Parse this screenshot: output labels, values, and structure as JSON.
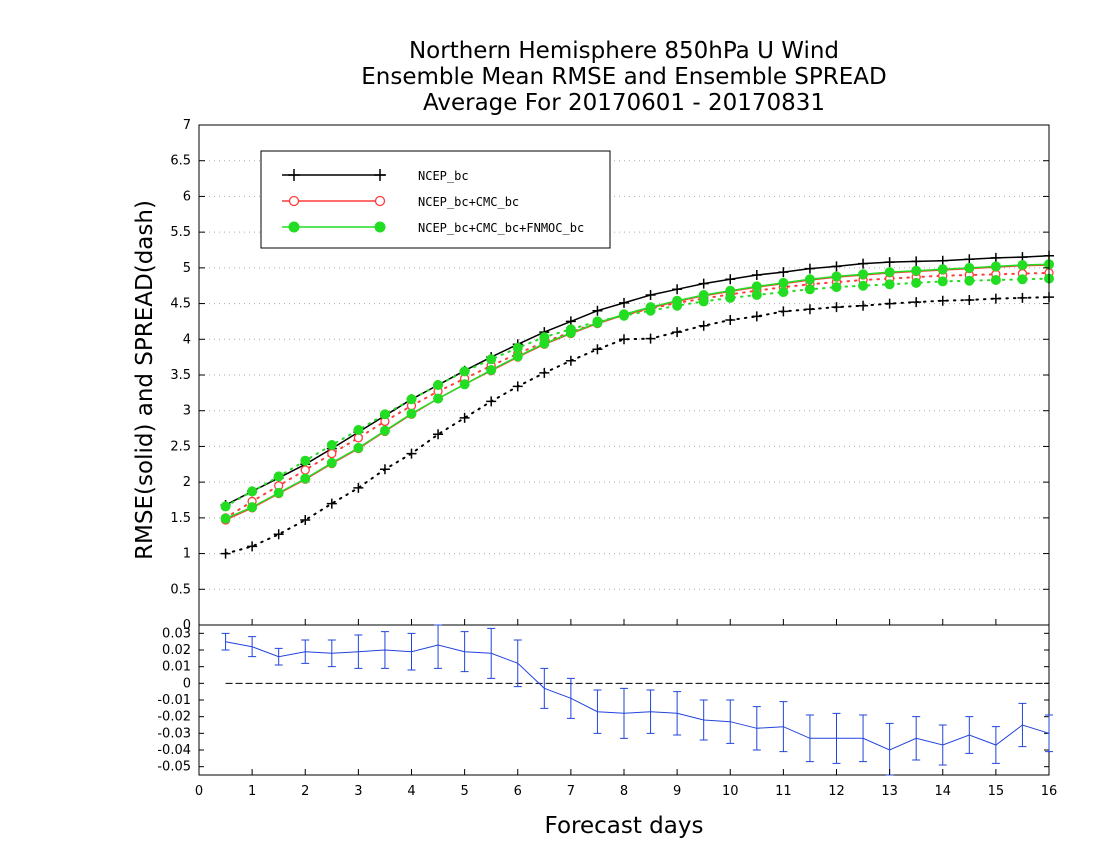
{
  "chart_data": [
    {
      "type": "line",
      "title": [
        "Northern Hemisphere 850hPa U Wind",
        "Ensemble Mean RMSE and Ensemble SPREAD",
        "Average For 20170601 - 20170831"
      ],
      "ylabel": "RMSE(solid)  and  SPREAD(dash)",
      "xlabel": "Forecast days",
      "xlim": [
        0,
        16
      ],
      "ylim": [
        0,
        7
      ],
      "xticks": [
        "0",
        "1",
        "2",
        "3",
        "4",
        "5",
        "6",
        "7",
        "8",
        "9",
        "10",
        "11",
        "12",
        "13",
        "14",
        "15",
        "16"
      ],
      "yticks": [
        "0",
        "0.5",
        "1",
        "1.5",
        "2",
        "2.5",
        "3",
        "3.5",
        "4",
        "4.5",
        "5",
        "5.5",
        "6",
        "6.5",
        "7"
      ],
      "grid": true,
      "legend_position": "top-left",
      "x": [
        0.5,
        1,
        1.5,
        2,
        2.5,
        3,
        3.5,
        4,
        4.5,
        5,
        5.5,
        6,
        6.5,
        7,
        7.5,
        8,
        8.5,
        9,
        9.5,
        10,
        10.5,
        11,
        11.5,
        12,
        12.5,
        13,
        13.5,
        14,
        14.5,
        15,
        15.5,
        16
      ],
      "series": [
        {
          "name": "NCEP_bc",
          "color": "#000000",
          "marker": "plus",
          "rmse": [
            1.68,
            1.87,
            2.06,
            2.25,
            2.47,
            2.7,
            2.93,
            3.16,
            3.36,
            3.56,
            3.75,
            3.93,
            4.1,
            4.25,
            4.4,
            4.51,
            4.62,
            4.7,
            4.78,
            4.84,
            4.9,
            4.94,
            4.99,
            5.02,
            5.06,
            5.08,
            5.09,
            5.1,
            5.12,
            5.14,
            5.15,
            5.17
          ],
          "spread": [
            1.0,
            1.1,
            1.27,
            1.47,
            1.7,
            1.92,
            2.18,
            2.4,
            2.67,
            2.9,
            3.13,
            3.34,
            3.53,
            3.7,
            3.86,
            4.0,
            4.01,
            4.1,
            4.19,
            4.27,
            4.32,
            4.39,
            4.42,
            4.45,
            4.47,
            4.5,
            4.52,
            4.54,
            4.55,
            4.57,
            4.58,
            4.59
          ]
        },
        {
          "name": "NCEP_bc+CMC_bc",
          "color": "#ff3b3b",
          "marker": "open-circle",
          "rmse": [
            1.47,
            1.64,
            1.84,
            2.04,
            2.26,
            2.47,
            2.71,
            2.95,
            3.17,
            3.37,
            3.56,
            3.75,
            3.93,
            4.08,
            4.22,
            4.34,
            4.44,
            4.53,
            4.61,
            4.67,
            4.73,
            4.78,
            4.83,
            4.87,
            4.9,
            4.93,
            4.95,
            4.97,
            4.99,
            5.01,
            5.03,
            5.04
          ],
          "spread": [
            1.5,
            1.73,
            1.95,
            2.17,
            2.4,
            2.62,
            2.85,
            3.07,
            3.27,
            3.45,
            3.63,
            3.8,
            3.96,
            4.1,
            4.23,
            4.34,
            4.43,
            4.51,
            4.57,
            4.63,
            4.68,
            4.73,
            4.77,
            4.8,
            4.83,
            4.85,
            4.87,
            4.89,
            4.9,
            4.91,
            4.92,
            4.93
          ]
        },
        {
          "name": "NCEP_bc+CMC_bc+FNMOC_bc",
          "color": "#22dd22",
          "marker": "filled-circle",
          "rmse": [
            1.49,
            1.65,
            1.85,
            2.05,
            2.27,
            2.48,
            2.72,
            2.96,
            3.17,
            3.37,
            3.57,
            3.76,
            3.94,
            4.09,
            4.23,
            4.35,
            4.45,
            4.54,
            4.62,
            4.68,
            4.74,
            4.79,
            4.84,
            4.88,
            4.91,
            4.94,
            4.96,
            4.98,
            5.0,
            5.02,
            5.04,
            5.05
          ],
          "spread": [
            1.66,
            1.87,
            2.08,
            2.3,
            2.52,
            2.73,
            2.95,
            3.16,
            3.36,
            3.55,
            3.72,
            3.88,
            4.03,
            4.14,
            4.25,
            4.33,
            4.4,
            4.47,
            4.53,
            4.58,
            4.62,
            4.66,
            4.7,
            4.73,
            4.75,
            4.77,
            4.79,
            4.81,
            4.82,
            4.83,
            4.84,
            4.85
          ]
        }
      ]
    },
    {
      "type": "line",
      "subtype": "difference-with-error-bars",
      "xlim": [
        0,
        16
      ],
      "ylim": [
        -0.055,
        0.035
      ],
      "yticks": [
        "0.03",
        "0.02",
        "0.01",
        "0",
        "-0.01",
        "-0.02",
        "-0.03",
        "-0.04",
        "-0.05"
      ],
      "color": "#2244dd",
      "x": [
        0.5,
        1,
        1.5,
        2,
        2.5,
        3,
        3.5,
        4,
        4.5,
        5,
        5.5,
        6,
        6.5,
        7,
        7.5,
        8,
        8.5,
        9,
        9.5,
        10,
        10.5,
        11,
        11.5,
        12,
        12.5,
        13,
        13.5,
        14,
        14.5,
        15,
        15.5,
        16
      ],
      "values": [
        0.025,
        0.022,
        0.016,
        0.019,
        0.018,
        0.019,
        0.02,
        0.019,
        0.023,
        0.019,
        0.018,
        0.012,
        -0.003,
        -0.009,
        -0.017,
        -0.018,
        -0.017,
        -0.018,
        -0.022,
        -0.023,
        -0.027,
        -0.026,
        -0.033,
        -0.033,
        -0.033,
        -0.04,
        -0.033,
        -0.037,
        -0.031,
        -0.037,
        -0.025,
        -0.03
      ],
      "errors": [
        0.005,
        0.006,
        0.005,
        0.007,
        0.008,
        0.01,
        0.011,
        0.011,
        0.014,
        0.012,
        0.015,
        0.014,
        0.012,
        0.012,
        0.013,
        0.015,
        0.013,
        0.013,
        0.012,
        0.013,
        0.013,
        0.015,
        0.014,
        0.015,
        0.014,
        0.016,
        0.013,
        0.012,
        0.011,
        0.011,
        0.013,
        0.011
      ]
    }
  ]
}
